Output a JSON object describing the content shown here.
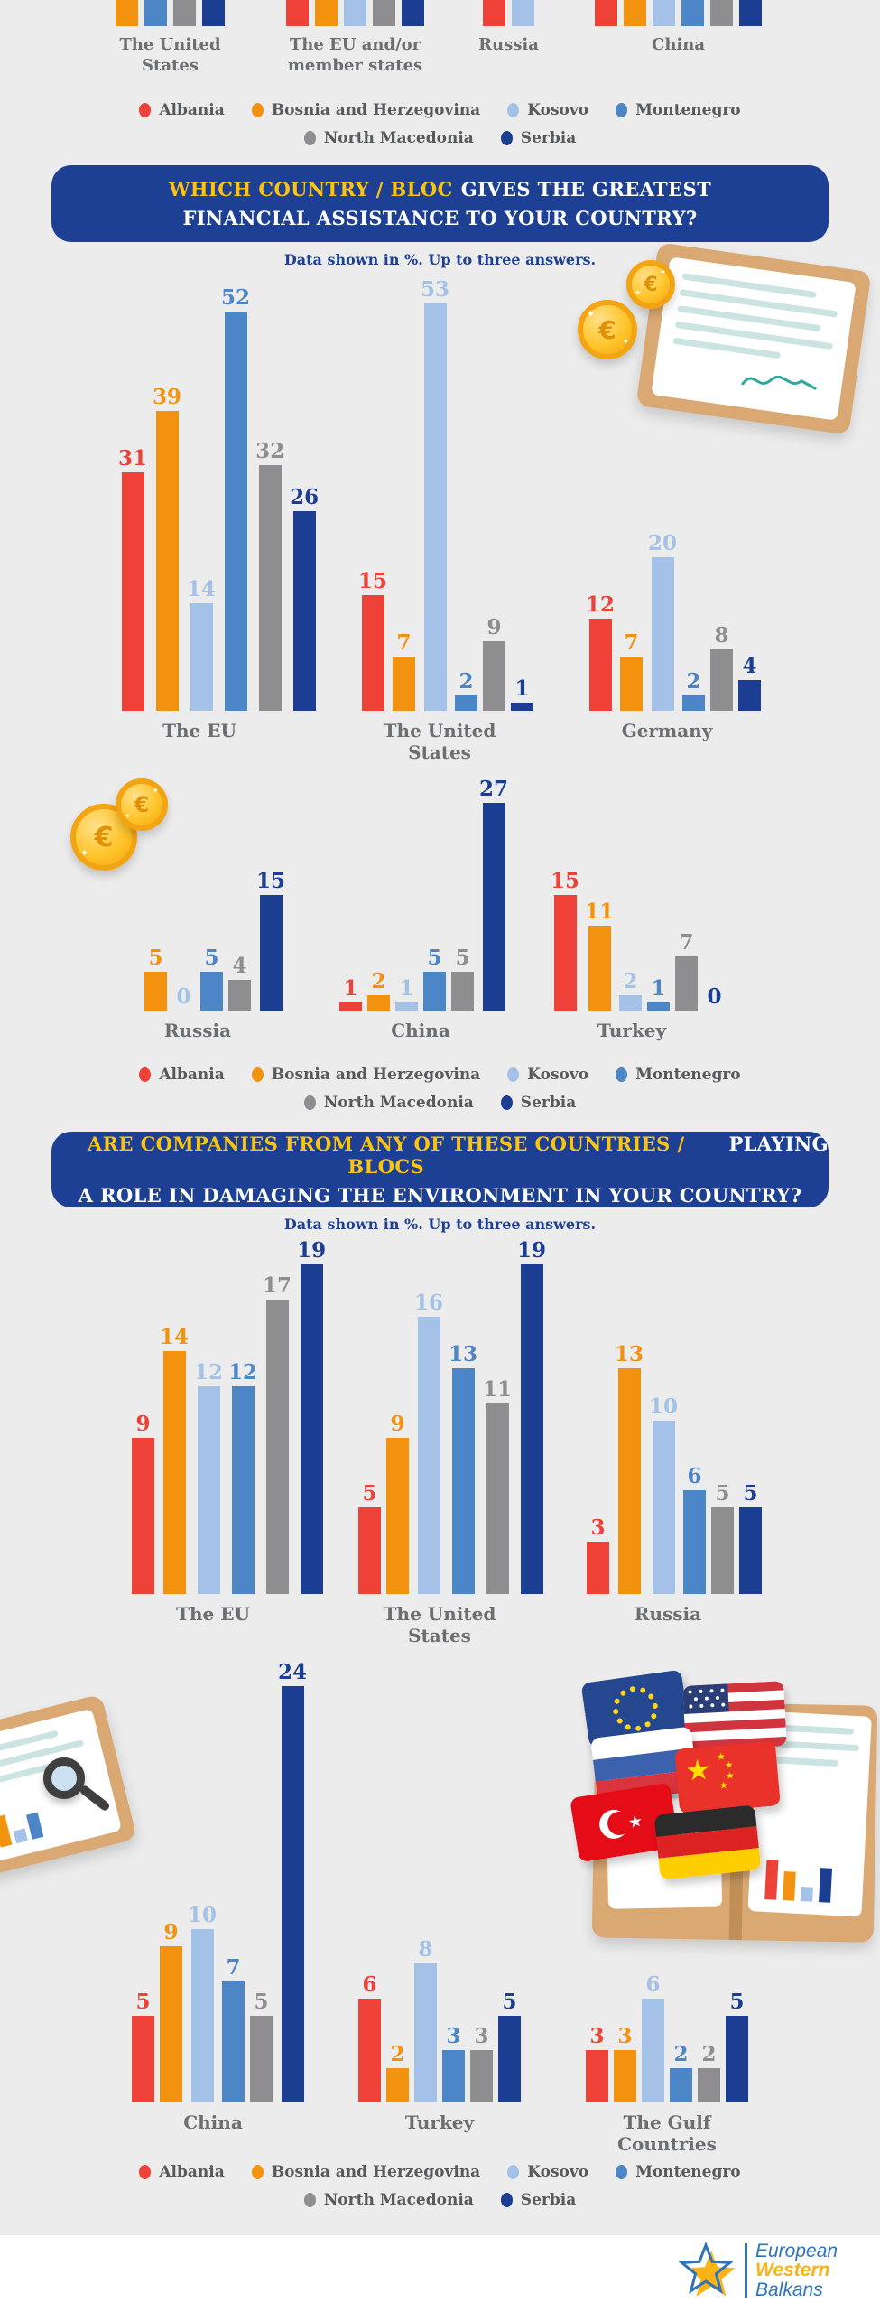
{
  "palette": {
    "background": "#ececec",
    "header_box": "#1d4094",
    "header_highlight": "#fcc40d",
    "header_text": "#ffffff",
    "subtitle_color": "#1d4094",
    "category_label": "#6d6e71",
    "legend_text": "#58595b",
    "footer_background": "#ffffff",
    "logo_blue": "#2e74b9",
    "logo_yellow": "#f9b316"
  },
  "series": [
    {
      "name": "Albania",
      "color": "#ee4137"
    },
    {
      "name": "Bosnia and Herzegovina",
      "color": "#f2920e"
    },
    {
      "name": "Kosovo",
      "color": "#a4c2e8"
    },
    {
      "name": "Montenegro",
      "color": "#4d86c6"
    },
    {
      "name": "North Macedonia",
      "color": "#8e8e91"
    },
    {
      "name": "Serbia",
      "color": "#1b3e92"
    }
  ],
  "legend": {
    "rows": [
      [
        0,
        1,
        2,
        3
      ],
      [
        4,
        5
      ]
    ]
  },
  "top_partial_chart": {
    "groups": [
      {
        "label": "The United States",
        "series_present": [
          1,
          3,
          4,
          5
        ]
      },
      {
        "label": "The EU and/or member states",
        "series_present": [
          0,
          1,
          2,
          4,
          5
        ]
      },
      {
        "label": "Russia",
        "series_present": [
          0,
          2
        ]
      },
      {
        "label": "China",
        "series_present": [
          0,
          1,
          2,
          3,
          4,
          5
        ]
      }
    ]
  },
  "sections": [
    {
      "title_highlight": "WHICH COUNTRY / BLOC",
      "title_line1_rest": "GIVES THE GREATEST",
      "title_line2": "FINANCIAL ASSISTANCE TO YOUR COUNTRY?",
      "subtitle": "Data shown in %. Up to three answers."
    },
    {
      "title_highlight": "ARE COMPANIES FROM ANY OF THESE COUNTRIES / BLOCS",
      "title_line1_rest": "PLAYING",
      "title_line2": "A ROLE IN DAMAGING THE ENVIRONMENT IN YOUR COUNTRY?",
      "subtitle": "Data shown in %. Up to three answers."
    }
  ],
  "chart_data": [
    {
      "id": "financial-assistance",
      "type": "bar",
      "unit": "%",
      "title": "WHICH COUNTRY / BLOC GIVES THE GREATEST FINANCIAL ASSISTANCE TO YOUR COUNTRY?",
      "note": "Data shown in %. Up to three answers.",
      "categories": [
        "The EU",
        "The United States",
        "Germany",
        "Russia",
        "China",
        "Turkey"
      ],
      "series": [
        {
          "name": "Albania",
          "values": [
            31,
            15,
            12,
            null,
            1,
            15
          ]
        },
        {
          "name": "Bosnia and Herzegovina",
          "values": [
            39,
            7,
            7,
            5,
            2,
            11
          ]
        },
        {
          "name": "Kosovo",
          "values": [
            14,
            53,
            20,
            0,
            1,
            2
          ]
        },
        {
          "name": "Montenegro",
          "values": [
            52,
            2,
            2,
            5,
            5,
            1
          ]
        },
        {
          "name": "North Macedonia",
          "values": [
            32,
            9,
            8,
            4,
            5,
            7
          ]
        },
        {
          "name": "Serbia",
          "values": [
            26,
            1,
            4,
            15,
            27,
            0
          ]
        }
      ]
    },
    {
      "id": "environment-damage",
      "type": "bar",
      "unit": "%",
      "title": "ARE COMPANIES FROM ANY OF THESE COUNTRIES / BLOCS PLAYING A ROLE IN DAMAGING THE ENVIRONMENT IN YOUR COUNTRY?",
      "note": "Data shown in %. Up to three answers.",
      "categories": [
        "The EU",
        "The United States",
        "Russia",
        "China",
        "Turkey",
        "The Gulf Countries"
      ],
      "series": [
        {
          "name": "Albania",
          "values": [
            9,
            5,
            3,
            5,
            6,
            3
          ]
        },
        {
          "name": "Bosnia and Herzegovina",
          "values": [
            14,
            9,
            13,
            9,
            2,
            3
          ]
        },
        {
          "name": "Kosovo",
          "values": [
            12,
            16,
            10,
            10,
            8,
            6
          ]
        },
        {
          "name": "Montenegro",
          "values": [
            12,
            13,
            6,
            7,
            3,
            2
          ]
        },
        {
          "name": "North Macedonia",
          "values": [
            17,
            11,
            5,
            5,
            3,
            2
          ]
        },
        {
          "name": "Serbia",
          "values": [
            19,
            19,
            5,
            24,
            5,
            5
          ]
        }
      ]
    }
  ],
  "decorations": {
    "coin_symbol": "€"
  },
  "footer": {
    "brand_line1": "European",
    "brand_line2": "Western",
    "brand_line3": "Balkans"
  }
}
